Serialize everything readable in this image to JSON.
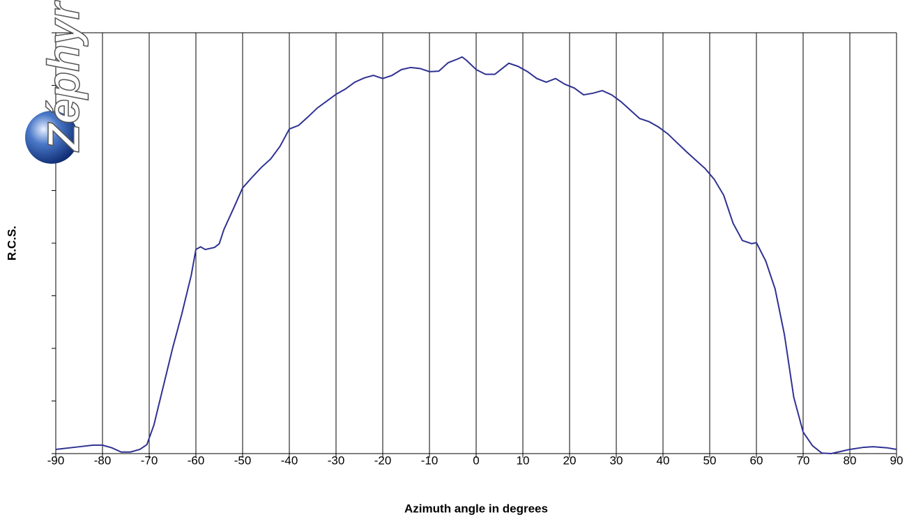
{
  "chart_data": {
    "type": "line",
    "logo": "Zéphyr",
    "xlabel": "Azimuth angle in degrees",
    "ylabel": "R.C.S.",
    "x": [
      -90,
      -85,
      -82,
      -80,
      -78,
      -76,
      -74,
      -72,
      -70.5,
      -69,
      -67,
      -65,
      -63,
      -61,
      -60,
      -59,
      -58,
      -56,
      -55,
      -54,
      -52,
      -50,
      -48,
      -46,
      -44,
      -42,
      -40,
      -38,
      -36,
      -34,
      -32,
      -30,
      -28,
      -26,
      -24,
      -22,
      -20,
      -18,
      -16,
      -14,
      -12,
      -10,
      -8,
      -6,
      -4,
      -3,
      -2,
      0,
      2,
      4,
      6,
      7,
      9,
      11,
      13,
      15,
      17,
      19,
      21,
      23,
      25,
      27,
      29,
      31,
      33,
      35,
      37,
      39,
      41,
      43,
      45,
      47,
      49,
      51,
      53,
      55,
      57,
      59,
      60,
      62,
      64,
      66,
      68,
      70,
      72,
      74,
      76,
      78,
      80,
      83,
      85,
      88,
      90
    ],
    "series": [
      {
        "color": "#2e3192",
        "values": [
          0.08,
          0.13,
          0.16,
          0.16,
          0.11,
          0.03,
          0.03,
          0.08,
          0.17,
          0.54,
          1.27,
          2.0,
          2.66,
          3.39,
          3.88,
          3.93,
          3.88,
          3.92,
          3.99,
          4.26,
          4.65,
          5.05,
          5.25,
          5.44,
          5.6,
          5.84,
          6.17,
          6.24,
          6.4,
          6.57,
          6.7,
          6.83,
          6.93,
          7.06,
          7.14,
          7.19,
          7.13,
          7.19,
          7.3,
          7.34,
          7.32,
          7.26,
          7.27,
          7.43,
          7.5,
          7.54,
          7.47,
          7.3,
          7.21,
          7.21,
          7.35,
          7.42,
          7.36,
          7.26,
          7.13,
          7.06,
          7.13,
          7.02,
          6.95,
          6.82,
          6.85,
          6.9,
          6.82,
          6.69,
          6.53,
          6.37,
          6.31,
          6.21,
          6.08,
          5.91,
          5.74,
          5.58,
          5.42,
          5.21,
          4.91,
          4.38,
          4.05,
          3.99,
          4.01,
          3.66,
          3.13,
          2.26,
          1.07,
          0.41,
          0.15,
          0.01,
          0,
          0.04,
          0.08,
          0.12,
          0.13,
          0.11,
          0.08
        ]
      }
    ],
    "xlim": [
      -90,
      90
    ],
    "xticks": [
      -90,
      -80,
      -70,
      -60,
      -50,
      -40,
      -30,
      -20,
      -10,
      0,
      10,
      20,
      30,
      40,
      50,
      60,
      70,
      80,
      90
    ],
    "ylim": [
      0,
      8
    ],
    "yticks": [
      0,
      1,
      2,
      3,
      4,
      5,
      6,
      7,
      8
    ],
    "grid": true
  }
}
